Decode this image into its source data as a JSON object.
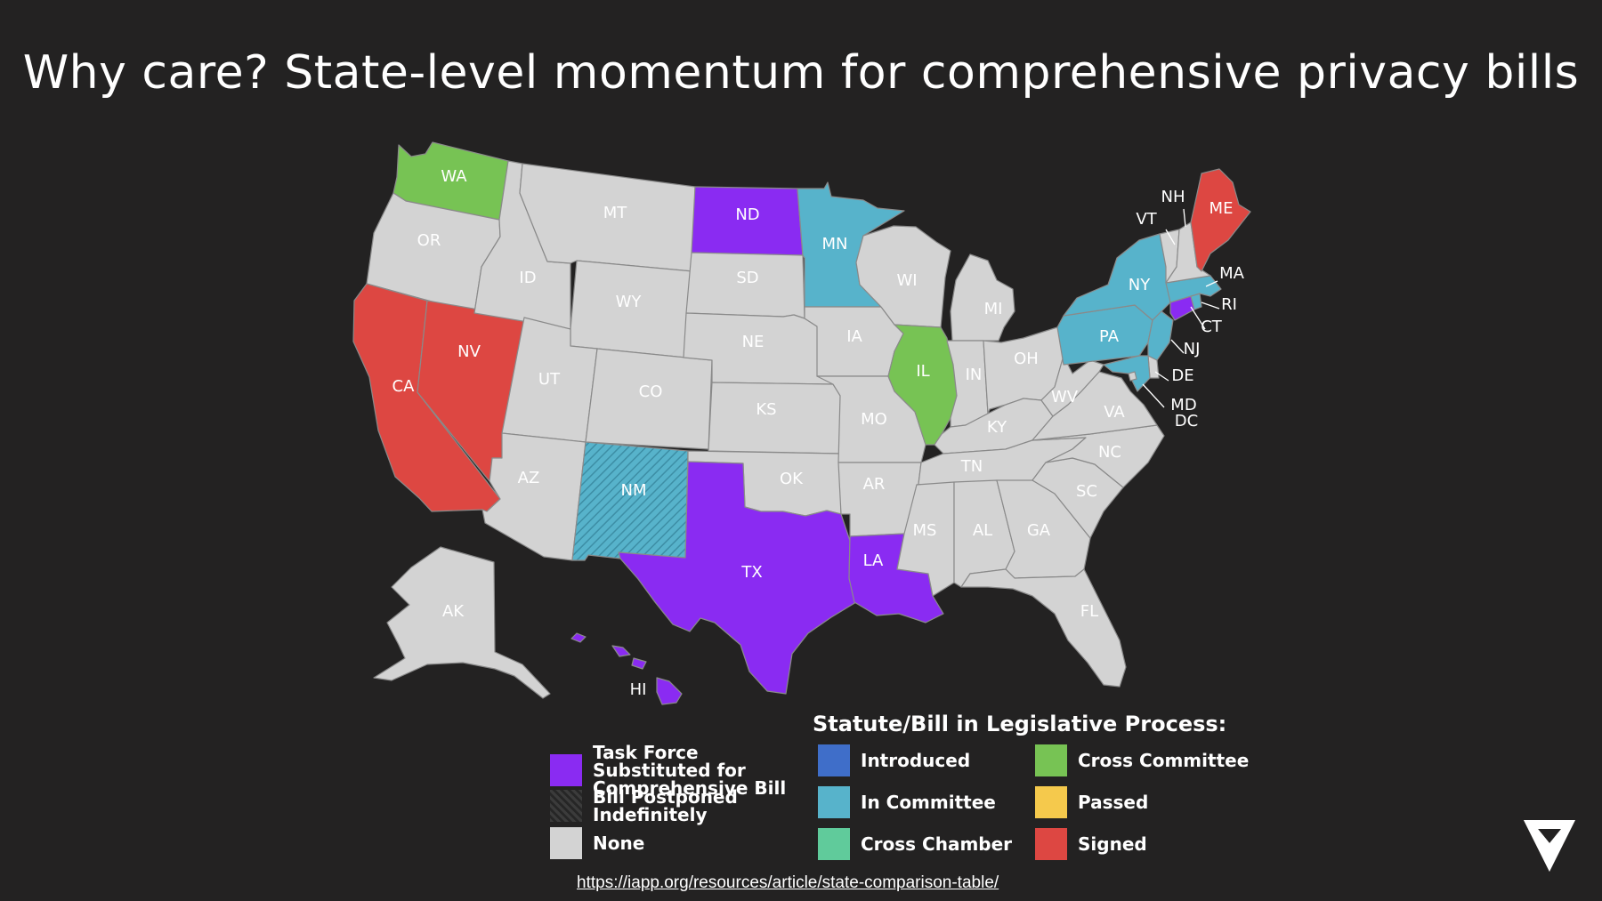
{
  "title": "Why care? State-level momentum for comprehensive privacy bills",
  "colors": {
    "background": "#232222",
    "none": "#d3d3d3",
    "task_force": "#8a2bf2",
    "introduced": "#3f6ec9",
    "in_committee": "#57b3cb",
    "cross_chamber": "#60cb9b",
    "cross_committee": "#77c354",
    "passed": "#f5c94c",
    "signed": "#dd4742"
  },
  "states": {
    "WA": {
      "label": "WA",
      "status": "cross_committee"
    },
    "OR": {
      "label": "OR",
      "status": "none"
    },
    "CA": {
      "label": "CA",
      "status": "signed"
    },
    "NV": {
      "label": "NV",
      "status": "signed"
    },
    "ID": {
      "label": "ID",
      "status": "none"
    },
    "MT": {
      "label": "MT",
      "status": "none"
    },
    "WY": {
      "label": "WY",
      "status": "none"
    },
    "UT": {
      "label": "UT",
      "status": "none"
    },
    "AZ": {
      "label": "AZ",
      "status": "none"
    },
    "CO": {
      "label": "CO",
      "status": "none"
    },
    "NM": {
      "label": "NM",
      "status": "in_committee",
      "postponed": true
    },
    "ND": {
      "label": "ND",
      "status": "task_force"
    },
    "SD": {
      "label": "SD",
      "status": "none"
    },
    "NE": {
      "label": "NE",
      "status": "none"
    },
    "KS": {
      "label": "KS",
      "status": "none"
    },
    "OK": {
      "label": "OK",
      "status": "none"
    },
    "TX": {
      "label": "TX",
      "status": "task_force"
    },
    "MN": {
      "label": "MN",
      "status": "in_committee"
    },
    "IA": {
      "label": "IA",
      "status": "none"
    },
    "MO": {
      "label": "MO",
      "status": "none"
    },
    "AR": {
      "label": "AR",
      "status": "none"
    },
    "LA": {
      "label": "LA",
      "status": "task_force"
    },
    "WI": {
      "label": "WI",
      "status": "none"
    },
    "IL": {
      "label": "IL",
      "status": "cross_committee"
    },
    "MI": {
      "label": "MI",
      "status": "none"
    },
    "IN": {
      "label": "IN",
      "status": "none"
    },
    "OH": {
      "label": "OH",
      "status": "none"
    },
    "KY": {
      "label": "KY",
      "status": "none"
    },
    "TN": {
      "label": "TN",
      "status": "none"
    },
    "MS": {
      "label": "MS",
      "status": "none"
    },
    "AL": {
      "label": "AL",
      "status": "none"
    },
    "GA": {
      "label": "GA",
      "status": "none"
    },
    "FL": {
      "label": "FL",
      "status": "none"
    },
    "SC": {
      "label": "SC",
      "status": "none"
    },
    "NC": {
      "label": "NC",
      "status": "none"
    },
    "VA": {
      "label": "VA",
      "status": "none"
    },
    "WV": {
      "label": "WV",
      "status": "none"
    },
    "PA": {
      "label": "PA",
      "status": "in_committee"
    },
    "NY": {
      "label": "NY",
      "status": "in_committee"
    },
    "NJ": {
      "label": "NJ",
      "status": "in_committee"
    },
    "DE": {
      "label": "DE",
      "status": "none"
    },
    "MD": {
      "label": "MD",
      "status": "in_committee"
    },
    "DC": {
      "label": "DC",
      "status": "none"
    },
    "CT": {
      "label": "CT",
      "status": "task_force"
    },
    "RI": {
      "label": "RI",
      "status": "in_committee"
    },
    "MA": {
      "label": "MA",
      "status": "in_committee"
    },
    "VT": {
      "label": "VT",
      "status": "none"
    },
    "NH": {
      "label": "NH",
      "status": "none"
    },
    "ME": {
      "label": "ME",
      "status": "signed"
    },
    "AK": {
      "label": "AK",
      "status": "none"
    },
    "HI": {
      "label": "HI",
      "status": "task_force"
    }
  },
  "legend": {
    "heading": "Statute/Bill in Legislative Process:",
    "task_force": "Task Force Substituted for Comprehensive Bill",
    "postponed": "Bill Postponed Indefinitely",
    "none": "None",
    "introduced": "Introduced",
    "in_committee": "In Committee",
    "cross_chamber": "Cross Chamber",
    "cross_committee": "Cross Committee",
    "passed": "Passed",
    "signed": "Signed"
  },
  "source_url": "https://iapp.org/resources/article/state-comparison-table/",
  "logo_icon": "triangle-logo-icon"
}
